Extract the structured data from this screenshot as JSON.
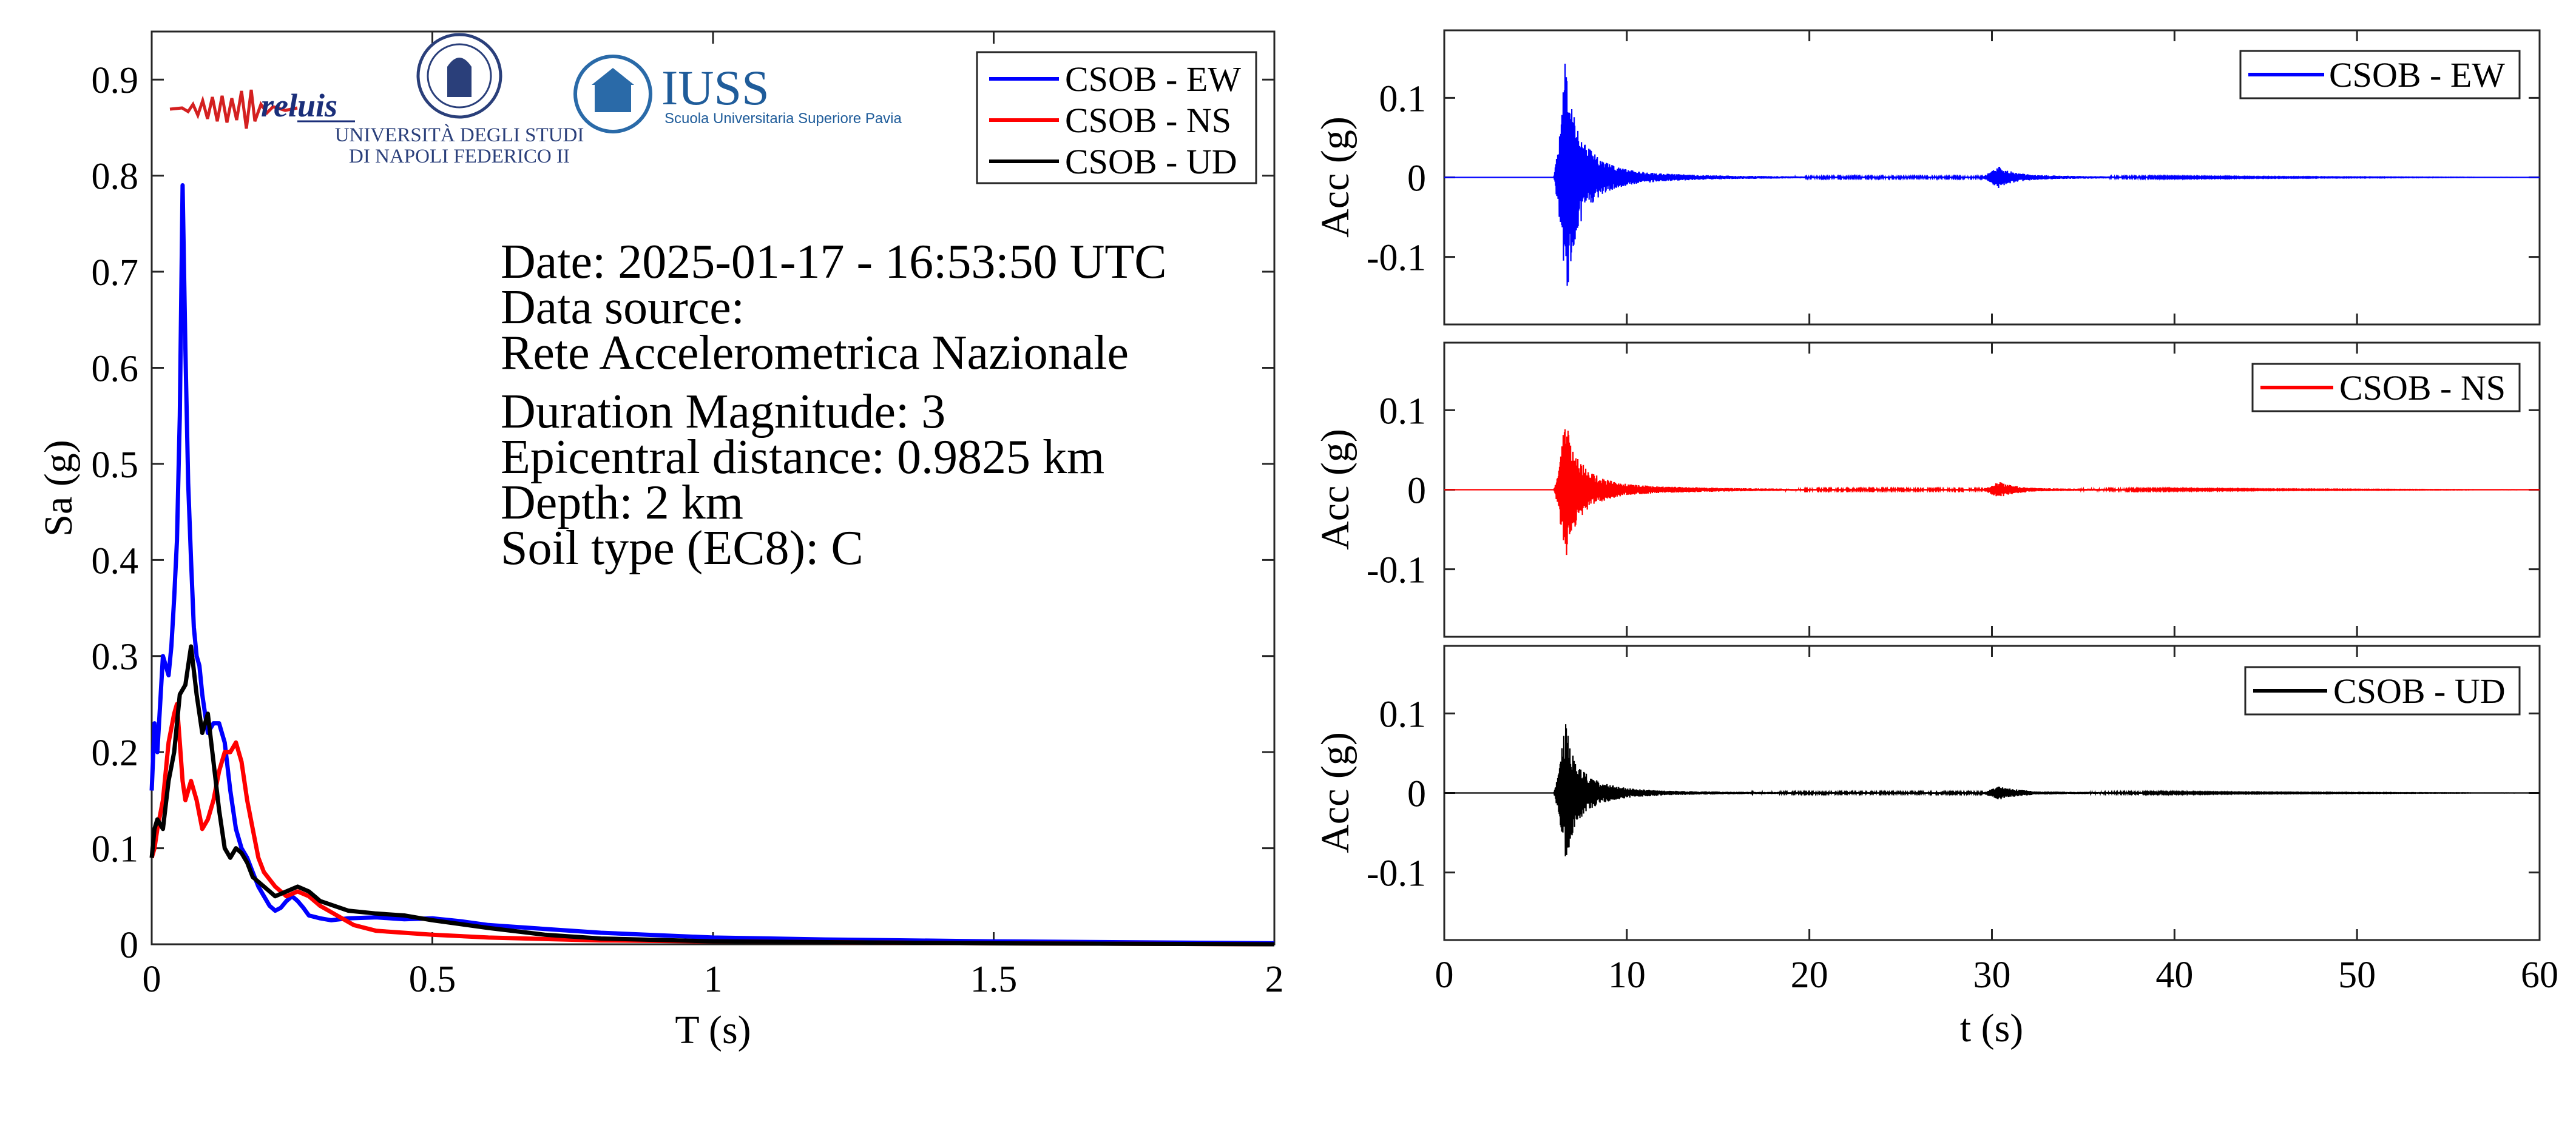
{
  "chart_data": [
    {
      "type": "line",
      "xlabel": "T (s)",
      "ylabel": "Sa (g)",
      "xlim": [
        0,
        2
      ],
      "ylim": [
        0,
        0.95
      ],
      "xticks": [
        0,
        0.5,
        1,
        1.5,
        2
      ],
      "xtick_labels": [
        "0",
        "0.5",
        "1",
        "1.5",
        "2"
      ],
      "yticks": [
        0,
        0.1,
        0.2,
        0.3,
        0.4,
        0.5,
        0.6,
        0.7,
        0.8,
        0.9
      ],
      "ytick_labels": [
        "0",
        "0.1",
        "0.2",
        "0.3",
        "0.4",
        "0.5",
        "0.6",
        "0.7",
        "0.8",
        "0.9"
      ],
      "grid": false,
      "legend_placement": "top-right",
      "series": [
        {
          "name": "CSOB - EW",
          "color": "#0000ff",
          "x": [
            0,
            0.005,
            0.01,
            0.02,
            0.03,
            0.035,
            0.04,
            0.045,
            0.05,
            0.055,
            0.06,
            0.065,
            0.07,
            0.075,
            0.08,
            0.085,
            0.09,
            0.1,
            0.11,
            0.12,
            0.13,
            0.14,
            0.15,
            0.16,
            0.17,
            0.18,
            0.19,
            0.2,
            0.21,
            0.22,
            0.23,
            0.24,
            0.25,
            0.26,
            0.27,
            0.28,
            0.3,
            0.32,
            0.35,
            0.4,
            0.45,
            0.5,
            0.55,
            0.6,
            0.7,
            0.8,
            1.0,
            1.2,
            1.5,
            2.0
          ],
          "y": [
            0.16,
            0.23,
            0.2,
            0.3,
            0.28,
            0.31,
            0.36,
            0.42,
            0.55,
            0.79,
            0.62,
            0.48,
            0.4,
            0.33,
            0.3,
            0.29,
            0.26,
            0.22,
            0.23,
            0.23,
            0.21,
            0.16,
            0.12,
            0.1,
            0.09,
            0.075,
            0.06,
            0.05,
            0.04,
            0.035,
            0.038,
            0.045,
            0.05,
            0.045,
            0.038,
            0.03,
            0.027,
            0.025,
            0.027,
            0.028,
            0.026,
            0.027,
            0.024,
            0.02,
            0.016,
            0.012,
            0.007,
            0.005,
            0.003,
            0.001
          ]
        },
        {
          "name": "CSOB - NS",
          "color": "#ff0000",
          "x": [
            0,
            0.005,
            0.01,
            0.02,
            0.03,
            0.04,
            0.045,
            0.05,
            0.055,
            0.06,
            0.07,
            0.08,
            0.09,
            0.1,
            0.11,
            0.12,
            0.13,
            0.14,
            0.15,
            0.16,
            0.17,
            0.18,
            0.19,
            0.2,
            0.22,
            0.24,
            0.26,
            0.28,
            0.3,
            0.33,
            0.36,
            0.4,
            0.5,
            0.6,
            0.8,
            1.0,
            1.5,
            2.0
          ],
          "y": [
            0.09,
            0.1,
            0.12,
            0.15,
            0.21,
            0.24,
            0.25,
            0.21,
            0.17,
            0.15,
            0.17,
            0.15,
            0.12,
            0.13,
            0.15,
            0.18,
            0.2,
            0.2,
            0.21,
            0.19,
            0.15,
            0.12,
            0.09,
            0.075,
            0.06,
            0.05,
            0.055,
            0.05,
            0.04,
            0.03,
            0.02,
            0.014,
            0.01,
            0.007,
            0.004,
            0.003,
            0.001,
            0.0
          ]
        },
        {
          "name": "CSOB - UD",
          "color": "#000000",
          "x": [
            0,
            0.005,
            0.01,
            0.02,
            0.03,
            0.04,
            0.05,
            0.06,
            0.065,
            0.07,
            0.08,
            0.09,
            0.1,
            0.11,
            0.12,
            0.13,
            0.14,
            0.15,
            0.16,
            0.17,
            0.18,
            0.2,
            0.22,
            0.24,
            0.26,
            0.28,
            0.3,
            0.35,
            0.4,
            0.45,
            0.5,
            0.6,
            0.7,
            0.8,
            1.0,
            1.5,
            2.0
          ],
          "y": [
            0.09,
            0.12,
            0.13,
            0.12,
            0.17,
            0.2,
            0.26,
            0.27,
            0.29,
            0.31,
            0.26,
            0.22,
            0.24,
            0.19,
            0.14,
            0.1,
            0.09,
            0.1,
            0.095,
            0.085,
            0.07,
            0.06,
            0.05,
            0.055,
            0.06,
            0.055,
            0.045,
            0.035,
            0.032,
            0.03,
            0.025,
            0.017,
            0.01,
            0.006,
            0.003,
            0.001,
            0.0
          ]
        }
      ],
      "annotations": [
        "Date: 2025-01-17 - 16:53:50 UTC",
        "Data source:",
        "Rete Accelerometrica Nazionale",
        "Duration Magnitude: 3",
        "Epicentral distance: 0.9825 km",
        "Depth: 2 km",
        "Soil type (EC8): C"
      ]
    },
    {
      "type": "line",
      "ylabel": "Acc (g)",
      "xlim": [
        0,
        60
      ],
      "ylim": [
        -0.185,
        0.185
      ],
      "yticks": [
        -0.1,
        0,
        0.1
      ],
      "ytick_labels": [
        "-0.1",
        "0",
        "0.1"
      ],
      "legend_placement": "top-right",
      "series": [
        {
          "name": "CSOB - EW",
          "color": "#0000ff",
          "envelope_t": [
            0,
            6.0,
            6.3,
            6.5,
            6.7,
            6.9,
            7.2,
            7.6,
            8.0,
            8.6,
            9.5,
            10.5,
            12,
            14,
            16,
            20,
            25,
            29.5,
            30.0,
            30.4,
            30.8,
            31.5,
            32.5,
            34,
            37,
            45,
            60
          ],
          "envelope_amp": [
            0.0,
            0.0,
            0.05,
            0.12,
            0.165,
            0.11,
            0.075,
            0.05,
            0.035,
            0.022,
            0.013,
            0.008,
            0.005,
            0.003,
            0.002,
            0.001,
            0.001,
            0.001,
            0.008,
            0.014,
            0.009,
            0.005,
            0.003,
            0.002,
            0.001,
            0.0005,
            0.0
          ]
        }
      ]
    },
    {
      "type": "line",
      "ylabel": "Acc (g)",
      "xlim": [
        0,
        60
      ],
      "ylim": [
        -0.185,
        0.185
      ],
      "yticks": [
        -0.1,
        0,
        0.1
      ],
      "ytick_labels": [
        "-0.1",
        "0",
        "0.1"
      ],
      "legend_placement": "top-right",
      "series": [
        {
          "name": "CSOB - NS",
          "color": "#ff0000",
          "envelope_t": [
            0,
            6.0,
            6.3,
            6.5,
            6.7,
            6.9,
            7.2,
            7.6,
            8.0,
            8.6,
            9.5,
            10.5,
            12,
            14,
            16,
            20,
            25,
            29.5,
            30.0,
            30.4,
            30.8,
            31.5,
            32.5,
            34,
            37,
            45,
            60
          ],
          "envelope_amp": [
            0.0,
            0.0,
            0.03,
            0.07,
            0.09,
            0.06,
            0.045,
            0.032,
            0.022,
            0.015,
            0.009,
            0.006,
            0.004,
            0.003,
            0.002,
            0.001,
            0.001,
            0.001,
            0.006,
            0.01,
            0.007,
            0.004,
            0.002,
            0.0015,
            0.001,
            0.0005,
            0.0
          ]
        }
      ]
    },
    {
      "type": "line",
      "xlabel": "t (s)",
      "ylabel": "Acc (g)",
      "xlim": [
        0,
        60
      ],
      "ylim": [
        -0.185,
        0.185
      ],
      "xticks": [
        0,
        10,
        20,
        30,
        40,
        50,
        60
      ],
      "xtick_labels": [
        "0",
        "10",
        "20",
        "30",
        "40",
        "50",
        "60"
      ],
      "yticks": [
        -0.1,
        0,
        0.1
      ],
      "ytick_labels": [
        "-0.1",
        "0",
        "0.1"
      ],
      "legend_placement": "top-right",
      "series": [
        {
          "name": "CSOB - UD",
          "color": "#000000",
          "envelope_t": [
            0,
            6.0,
            6.3,
            6.5,
            6.7,
            6.9,
            7.2,
            7.6,
            8.0,
            8.6,
            9.5,
            10.5,
            12,
            14,
            16,
            20,
            25,
            29.5,
            30.0,
            30.4,
            30.8,
            31.5,
            32.5,
            34,
            37,
            45,
            60
          ],
          "envelope_amp": [
            0.0,
            0.0,
            0.03,
            0.065,
            0.095,
            0.06,
            0.04,
            0.028,
            0.02,
            0.013,
            0.008,
            0.005,
            0.003,
            0.002,
            0.0015,
            0.001,
            0.001,
            0.001,
            0.005,
            0.009,
            0.006,
            0.004,
            0.002,
            0.0015,
            0.001,
            0.0005,
            0.0
          ]
        }
      ]
    }
  ],
  "logos": {
    "reluis": "reluis",
    "unina_line1": "UNIVERSITÀ DEGLI STUDI",
    "unina_line2": "DI NAPOLI FEDERICO II",
    "iuss": "IUSS",
    "iuss_sub": "Scuola Universitaria Superiore Pavia"
  }
}
